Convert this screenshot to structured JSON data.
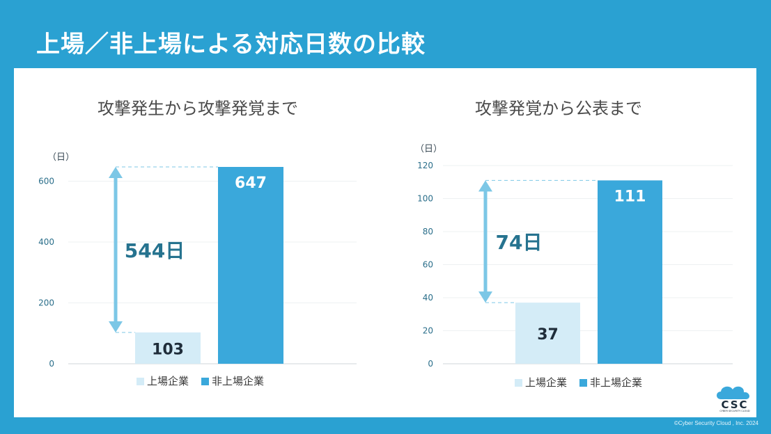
{
  "page": {
    "title": "上場／非上場による対応日数の比較",
    "copyright": "©Cyber Security Cloud , Inc. 2024",
    "logo": {
      "text": "CSC",
      "subtext": "CYBER SECURITY CLOUD",
      "icon": "cloud-icon"
    }
  },
  "colors": {
    "background": "#2aa1d2",
    "listed": "#d4ecf7",
    "unlisted": "#3aa8db",
    "arrow": "#7cc7e6",
    "diff_text": "#26738f",
    "axis_text": "#2a6e8a"
  },
  "chart_data": [
    {
      "type": "bar",
      "title": "攻撃発生から攻撃発覚まで",
      "unit_label": "（日）",
      "categories": [
        "上場企業",
        "非上場企業"
      ],
      "values": [
        103,
        647
      ],
      "data_labels": [
        "103",
        "647"
      ],
      "ylim": [
        0,
        647
      ],
      "yticks": [
        0,
        200,
        400,
        600
      ],
      "grid": true,
      "difference_label": "544日",
      "legend": {
        "placement": "bottom",
        "entries": [
          "上場企業",
          "非上場企業"
        ]
      }
    },
    {
      "type": "bar",
      "title": "攻撃発覚から公表まで",
      "unit_label": "（日）",
      "categories": [
        "上場企業",
        "非上場企業"
      ],
      "values": [
        37,
        111
      ],
      "data_labels": [
        "37",
        "111"
      ],
      "ylim": [
        0,
        120
      ],
      "yticks": [
        0,
        20,
        40,
        60,
        80,
        100,
        120
      ],
      "grid": true,
      "difference_label": "74日",
      "legend": {
        "placement": "bottom",
        "entries": [
          "上場企業",
          "非上場企業"
        ]
      }
    }
  ]
}
